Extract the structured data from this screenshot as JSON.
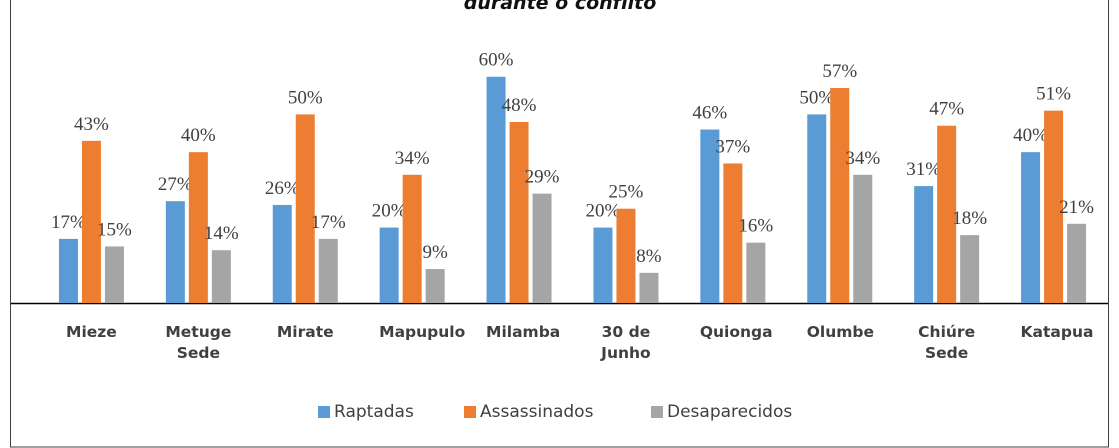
{
  "chart_data": {
    "type": "bar",
    "title": "durante o conflito",
    "categories": [
      "Mieze",
      "Metuge Sede",
      "Mirate",
      "Mapupulo",
      "Milamba",
      "30 de Junho",
      "Quionga",
      "Olumbe",
      "Chiúre Sede",
      "Katapua"
    ],
    "series": [
      {
        "name": "Raptadas",
        "color": "#5b9bd5",
        "values": [
          17,
          27,
          26,
          20,
          60,
          20,
          46,
          50,
          31,
          40
        ],
        "value_labels": [
          "17%",
          "27%",
          "26%",
          "20%",
          "60%",
          "20%",
          "46%",
          "50%",
          "31%",
          "40%"
        ]
      },
      {
        "name": "Assassinados",
        "color": "#ed7d31",
        "values": [
          43,
          40,
          50,
          34,
          48,
          25,
          37,
          57,
          47,
          51
        ],
        "value_labels": [
          "43%",
          "40%",
          "50%",
          "34%",
          "48%",
          "25%",
          "37%",
          "57%",
          "47%",
          "51%"
        ]
      },
      {
        "name": "Desaparecidos",
        "color": "#a5a5a5",
        "values": [
          15,
          14,
          17,
          9,
          29,
          8,
          16,
          34,
          18,
          21
        ],
        "value_labels": [
          "15%",
          "14%",
          "17%",
          "9%",
          "29%",
          "8%",
          "16%",
          "34%",
          "18%",
          "21%"
        ]
      }
    ],
    "ylim": [
      0,
      70
    ],
    "legend": "bottom"
  }
}
